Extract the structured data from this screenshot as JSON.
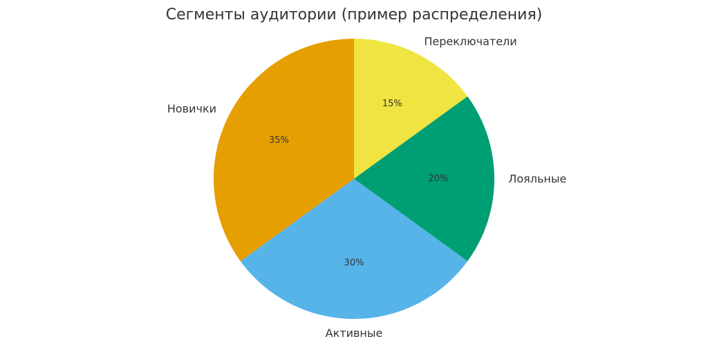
{
  "chart_data": {
    "type": "pie",
    "title": "Сегменты аудитории (пример распределения)",
    "categories": [
      "Переключатели",
      "Лояльные",
      "Активные",
      "Новички"
    ],
    "values": [
      15,
      20,
      30,
      35
    ],
    "value_labels": [
      "15%",
      "20%",
      "30%",
      "35%"
    ],
    "colors": [
      "#F0E442",
      "#009E73",
      "#56B4E9",
      "#E69F00"
    ],
    "start_angle": "top",
    "direction": "clockwise",
    "legend": "none"
  }
}
